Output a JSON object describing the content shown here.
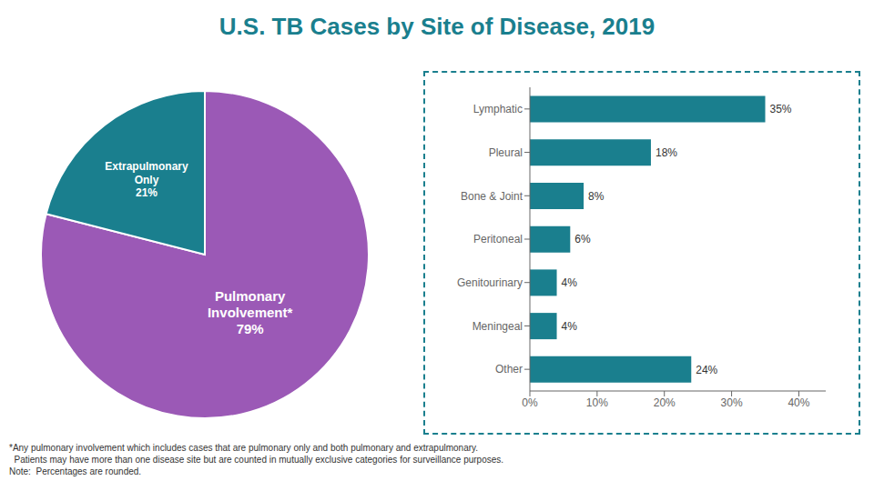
{
  "chart_data": [
    {
      "type": "pie",
      "title": "U.S. TB Cases by Site of Disease, 2019",
      "categories": [
        "Pulmonary\nInvolvement*",
        "Extrapulmonary\nOnly"
      ],
      "values": [
        79,
        21
      ],
      "value_labels": [
        "79%",
        "21%"
      ],
      "data_labels": true,
      "colors": [
        "#9b59b6",
        "#1a7f8e"
      ],
      "annotations": [
        "*Any pulmonary involvement which includes cases that are pulmonary only and both pulmonary and extrapulmonary.",
        "  Patients may have more than one disease site but are counted in mutually exclusive categories for surveillance purposes.",
        "Note:  Percentages are rounded."
      ]
    },
    {
      "type": "bar",
      "orientation": "horizontal",
      "categories": [
        "Lymphatic",
        "Pleural",
        "Bone & Joint",
        "Peritoneal",
        "Genitourinary",
        "Meningeal",
        "Other"
      ],
      "values": [
        35,
        18,
        8,
        6,
        4,
        4,
        24
      ],
      "value_labels": [
        "35%",
        "18%",
        "8%",
        "6%",
        "4%",
        "4%",
        "24%"
      ],
      "data_labels": true,
      "color": "#1a7f8e",
      "xlim": [
        0,
        44
      ],
      "xticks": [
        {
          "value": 0,
          "label": "0%"
        },
        {
          "value": 10,
          "label": "10%"
        },
        {
          "value": 20,
          "label": "20%"
        },
        {
          "value": 30,
          "label": "30%"
        },
        {
          "value": 40,
          "label": "40%"
        }
      ],
      "grid": false
    }
  ]
}
